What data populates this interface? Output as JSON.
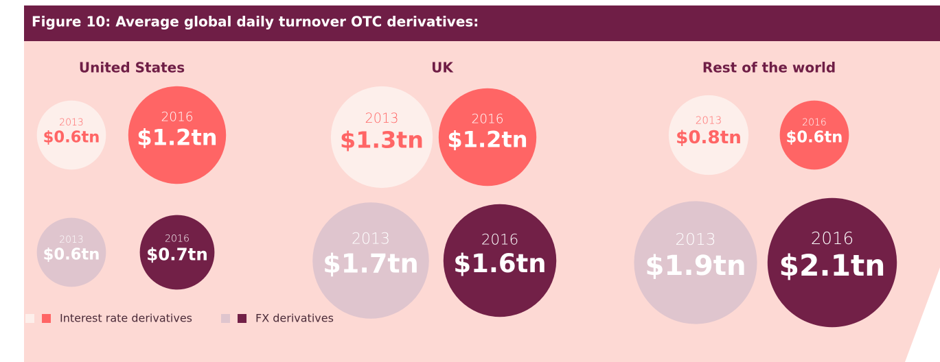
{
  "chart_data": {
    "type": "bubble",
    "title": "Figure 10: Average global daily turnover OTC derivatives:",
    "groups": [
      "United States",
      "UK",
      "Rest of the world"
    ],
    "years": [
      "2013",
      "2016"
    ],
    "series": [
      {
        "name": "Interest rate derivatives",
        "colors": [
          "#fdefeb",
          "#ff6565"
        ],
        "text_colors": [
          "#ff6565",
          "#ffffff"
        ],
        "values": [
          [
            0.6,
            1.2
          ],
          [
            1.3,
            1.2
          ],
          [
            0.8,
            0.6
          ]
        ],
        "value_labels": [
          [
            "$0.6tn",
            "$1.2tn"
          ],
          [
            "$1.3tn",
            "$1.2tn"
          ],
          [
            "$0.8tn",
            "$0.6tn"
          ]
        ]
      },
      {
        "name": "FX derivatives",
        "colors": [
          "#dfc5ce",
          "#722047"
        ],
        "text_colors": [
          "#ffffff",
          "#ffffff"
        ],
        "values": [
          [
            0.6,
            0.7
          ],
          [
            1.7,
            1.6
          ],
          [
            1.9,
            2.1
          ]
        ],
        "value_labels": [
          [
            "$0.6tn",
            "$0.7tn"
          ],
          [
            "$1.7tn",
            "$1.6tn"
          ],
          [
            "$1.9tn",
            "$2.1tn"
          ]
        ]
      }
    ]
  }
}
